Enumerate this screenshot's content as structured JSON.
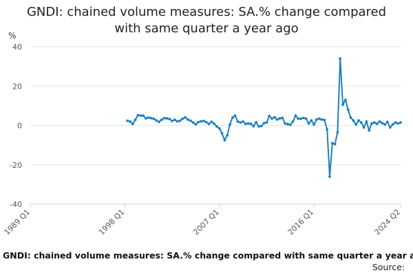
{
  "chart_data": {
    "type": "line",
    "title_line1": "GNDI: chained volume measures: SA.% change compared",
    "title_line2": "with same quarter a year ago",
    "ylabel": "%",
    "ylim": [
      -40,
      40
    ],
    "yticks": [
      "40",
      "20",
      "0",
      "-20",
      "-40"
    ],
    "xrange": [
      "1989 Q1",
      "2024 Q2"
    ],
    "xticks": [
      "1989 Q1",
      "1998 Q1",
      "2007 Q1",
      "2016 Q1",
      "2024 Q2"
    ],
    "grid": true,
    "line_color": "#1a80c4",
    "series": [
      {
        "values": [
          [
            "1998 Q2",
            2.4
          ],
          [
            "1998 Q3",
            2.0
          ],
          [
            "1998 Q4",
            0.8
          ],
          [
            "1999 Q1",
            2.9
          ],
          [
            "1999 Q2",
            5.2
          ],
          [
            "1999 Q3",
            5.0
          ],
          [
            "1999 Q4",
            5.0
          ],
          [
            "2000 Q1",
            3.6
          ],
          [
            "2000 Q2",
            4.0
          ],
          [
            "2000 Q3",
            3.7
          ],
          [
            "2000 Q4",
            3.4
          ],
          [
            "2001 Q1",
            2.6
          ],
          [
            "2001 Q2",
            1.8
          ],
          [
            "2001 Q3",
            2.9
          ],
          [
            "2001 Q4",
            3.7
          ],
          [
            "2002 Q1",
            3.6
          ],
          [
            "2002 Q2",
            3.3
          ],
          [
            "2002 Q3",
            2.3
          ],
          [
            "2002 Q4",
            2.9
          ],
          [
            "2003 Q1",
            2.1
          ],
          [
            "2003 Q2",
            2.4
          ],
          [
            "2003 Q3",
            3.4
          ],
          [
            "2003 Q4",
            4.1
          ],
          [
            "2004 Q1",
            3.0
          ],
          [
            "2004 Q2",
            2.4
          ],
          [
            "2004 Q3",
            1.5
          ],
          [
            "2004 Q4",
            0.6
          ],
          [
            "2005 Q1",
            1.7
          ],
          [
            "2005 Q2",
            2.1
          ],
          [
            "2005 Q3",
            2.3
          ],
          [
            "2005 Q4",
            1.7
          ],
          [
            "2006 Q1",
            0.8
          ],
          [
            "2006 Q2",
            1.9
          ],
          [
            "2006 Q3",
            0.9
          ],
          [
            "2006 Q4",
            -0.5
          ],
          [
            "2007 Q1",
            -1.5
          ],
          [
            "2007 Q2",
            -4.0
          ],
          [
            "2007 Q3",
            -7.5
          ],
          [
            "2007 Q4",
            -5.0
          ],
          [
            "2008 Q1",
            0.5
          ],
          [
            "2008 Q2",
            4.0
          ],
          [
            "2008 Q3",
            5.0
          ],
          [
            "2008 Q4",
            2.0
          ],
          [
            "2009 Q1",
            1.5
          ],
          [
            "2009 Q2",
            2.0
          ],
          [
            "2009 Q3",
            0.8
          ],
          [
            "2009 Q4",
            1.0
          ],
          [
            "2010 Q1",
            0.8
          ],
          [
            "2010 Q2",
            -0.4
          ],
          [
            "2010 Q3",
            1.6
          ],
          [
            "2010 Q4",
            -0.5
          ],
          [
            "2011 Q1",
            -0.3
          ],
          [
            "2011 Q2",
            1.2
          ],
          [
            "2011 Q3",
            1.5
          ],
          [
            "2011 Q4",
            4.8
          ],
          [
            "2012 Q1",
            3.5
          ],
          [
            "2012 Q2",
            4.2
          ],
          [
            "2012 Q3",
            3.0
          ],
          [
            "2012 Q4",
            3.6
          ],
          [
            "2013 Q1",
            3.8
          ],
          [
            "2013 Q2",
            1.0
          ],
          [
            "2013 Q3",
            0.7
          ],
          [
            "2013 Q4",
            0.3
          ],
          [
            "2014 Q1",
            2.0
          ],
          [
            "2014 Q2",
            5.0
          ],
          [
            "2014 Q3",
            3.5
          ],
          [
            "2014 Q4",
            3.4
          ],
          [
            "2015 Q1",
            3.8
          ],
          [
            "2015 Q2",
            3.5
          ],
          [
            "2015 Q3",
            1.0
          ],
          [
            "2015 Q4",
            2.5
          ],
          [
            "2016 Q1",
            0.5
          ],
          [
            "2016 Q2",
            3.0
          ],
          [
            "2016 Q3",
            3.5
          ],
          [
            "2016 Q4",
            3.0
          ],
          [
            "2017 Q1",
            2.8
          ],
          [
            "2017 Q2",
            -2.0
          ],
          [
            "2017 Q3",
            -26.0
          ],
          [
            "2017 Q4",
            -9.0
          ],
          [
            "2018 Q1",
            -9.5
          ],
          [
            "2018 Q2",
            -3.5
          ],
          [
            "2018 Q3",
            34.0
          ],
          [
            "2018 Q4",
            10.5
          ],
          [
            "2019 Q1",
            13.0
          ],
          [
            "2019 Q2",
            8.0
          ],
          [
            "2019 Q3",
            4.0
          ],
          [
            "2019 Q4",
            2.5
          ],
          [
            "2020 Q1",
            0.5
          ],
          [
            "2020 Q2",
            2.5
          ],
          [
            "2020 Q3",
            1.5
          ],
          [
            "2020 Q4",
            -1.0
          ],
          [
            "2021 Q1",
            2.0
          ],
          [
            "2021 Q2",
            -2.5
          ],
          [
            "2021 Q3",
            1.0
          ],
          [
            "2021 Q4",
            1.5
          ],
          [
            "2022 Q1",
            0.8
          ],
          [
            "2022 Q2",
            2.0
          ],
          [
            "2022 Q3",
            1.2
          ],
          [
            "2022 Q4",
            0.5
          ],
          [
            "2023 Q1",
            1.8
          ],
          [
            "2023 Q2",
            -1.0
          ],
          [
            "2023 Q3",
            0.5
          ],
          [
            "2023 Q4",
            1.5
          ],
          [
            "2024 Q1",
            1.0
          ],
          [
            "2024 Q2",
            1.5
          ]
        ]
      }
    ],
    "footer_caption": "GNDI: chained volume measures: SA.% change compared with same quarter a year ago",
    "footer_source": "Source:"
  }
}
